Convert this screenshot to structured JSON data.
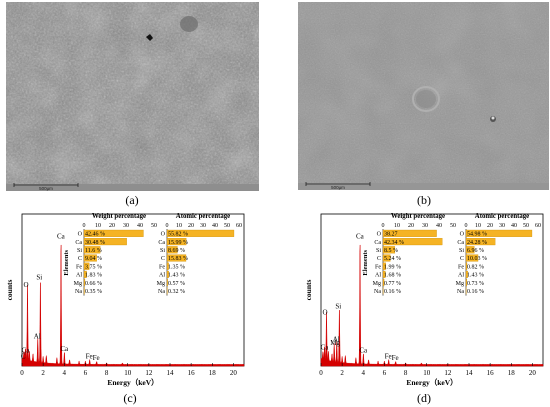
{
  "panels": [
    {
      "id": "a",
      "caption": "(a)",
      "scale_label": "500μm"
    },
    {
      "id": "b",
      "caption": "(b)",
      "scale_label": "500μm"
    },
    {
      "id": "c",
      "caption": "(c)"
    },
    {
      "id": "d",
      "caption": "(d)"
    }
  ],
  "chart_data": [
    {
      "type": "bar",
      "panel": "c",
      "spectrum": {
        "xlabel": "Energy（keV）",
        "ylabel": "counts",
        "xlim": [
          0,
          21
        ],
        "xticks": [
          0,
          2,
          4,
          6,
          8,
          10,
          12,
          14,
          16,
          18,
          20
        ],
        "peak_labels": [
          {
            "text": "O",
            "x": 0.52,
            "height": 0.5
          },
          {
            "text": "Si",
            "x": 1.74,
            "height": 0.55
          },
          {
            "text": "Ca",
            "x": 3.69,
            "height": 0.82
          },
          {
            "text": "Al",
            "x": 1.49,
            "height": 0.16
          },
          {
            "text": "Ca",
            "x": 0.34,
            "height": 0.07
          },
          {
            "text": "C",
            "x": 0.27,
            "height": 0.03
          },
          {
            "text": "Ca",
            "x": 4.01,
            "height": 0.08
          },
          {
            "text": "Fe",
            "x": 6.4,
            "height": 0.03
          },
          {
            "text": "Fe",
            "x": 7.06,
            "height": 0.02
          }
        ]
      },
      "inset_elements_label": "Elements",
      "inset": {
        "elements": [
          "O",
          "Ca",
          "Si",
          "C",
          "Fe",
          "Al",
          "Mg",
          "Na"
        ],
        "weight": {
          "title": "Weight percentage",
          "xlim": [
            0,
            50
          ],
          "xticks": [
            0,
            10,
            20,
            30,
            40,
            50
          ],
          "values": [
            42.46,
            30.48,
            11.6,
            9.04,
            3.75,
            1.83,
            0.66,
            0.35
          ],
          "labels": [
            "42.46 %",
            "30.48 %",
            "11.6 %",
            "9.04 %",
            "3.75 %",
            "1.83 %",
            "0.66 %",
            "0.35 %"
          ]
        },
        "atomic": {
          "title": "Atomic percentage",
          "xlim": [
            0,
            60
          ],
          "xticks": [
            0,
            10,
            20,
            30,
            40,
            50,
            60
          ],
          "values": [
            55.82,
            15.99,
            8.69,
            15.83,
            1.35,
            1.43,
            0.57,
            0.32
          ],
          "labels": [
            "55.82 %",
            "15.99 %",
            "8.69 %",
            "15.83 %",
            "1.35 %",
            "1.43 %",
            "0.57 %",
            "0.32 %"
          ]
        }
      }
    },
    {
      "type": "bar",
      "panel": "d",
      "spectrum": {
        "xlabel": "Energy（keV）",
        "ylabel": "counts",
        "xlim": [
          0,
          21
        ],
        "xticks": [
          0,
          2,
          4,
          6,
          8,
          10,
          12,
          14,
          16,
          18,
          20
        ],
        "peak_labels": [
          {
            "text": "O",
            "x": 0.52,
            "height": 0.32
          },
          {
            "text": "Si",
            "x": 1.74,
            "height": 0.36
          },
          {
            "text": "Ca",
            "x": 3.69,
            "height": 0.82
          },
          {
            "text": "Mg",
            "x": 1.25,
            "height": 0.12
          },
          {
            "text": "Al",
            "x": 1.49,
            "height": 0.14
          },
          {
            "text": "Ca",
            "x": 0.34,
            "height": 0.09
          },
          {
            "text": "Ca",
            "x": 4.01,
            "height": 0.07
          },
          {
            "text": "Fe",
            "x": 6.4,
            "height": 0.03
          },
          {
            "text": "Fe",
            "x": 7.06,
            "height": 0.02
          }
        ]
      },
      "inset_elements_label": "Elements",
      "inset": {
        "elements": [
          "O",
          "Ca",
          "Si",
          "C",
          "Fe",
          "Al",
          "Mg",
          "Na"
        ],
        "weight": {
          "title": "Weight percentage",
          "xlim": [
            0,
            50
          ],
          "xticks": [
            0,
            10,
            20,
            30,
            40,
            50
          ],
          "values": [
            38.27,
            42.34,
            8.5,
            5.24,
            1.99,
            1.68,
            0.77,
            0.16
          ],
          "labels": [
            "38.27",
            "42.34 %",
            "8.5 %",
            "5.24 %",
            "1.99 %",
            "1.68 %",
            "0.77 %",
            "0.16 %"
          ]
        },
        "atomic": {
          "title": "Atomic percentage",
          "xlim": [
            0,
            60
          ],
          "xticks": [
            0,
            10,
            20,
            30,
            40,
            50,
            60
          ],
          "values": [
            54.98,
            24.28,
            6.96,
            10.03,
            0.82,
            1.43,
            0.73,
            0.16
          ],
          "labels": [
            "54.98 %",
            "24.28 %",
            "6.96 %",
            "10.03 %",
            "0.82 %",
            "1.43 %",
            "0.73 %",
            "0.16 %"
          ]
        }
      }
    }
  ],
  "colors": {
    "bar": "#f5b324",
    "bar_edge": "#c98a00",
    "spectrum": "#d40000",
    "sem_a": "#8c8c8c",
    "sem_b": "#8f8f8f"
  }
}
